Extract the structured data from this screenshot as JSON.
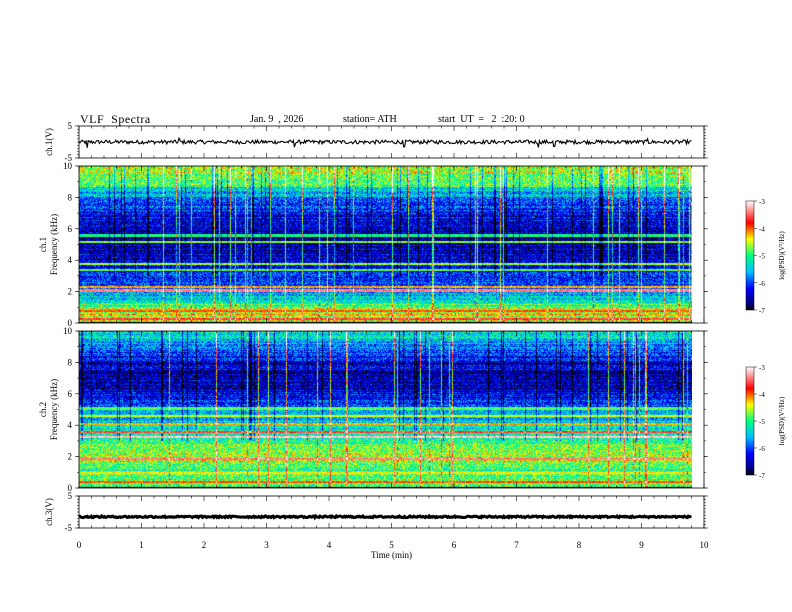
{
  "header": {
    "title": "VLF  Spectra",
    "date": "Jan. 9  , 2026",
    "station": "station= ATH",
    "start_ut": "start  UT  =   2  :20: 0"
  },
  "chart_data": [
    {
      "type": "line",
      "panel": "ch1-waveform",
      "ylabel": "ch.1(V)",
      "ylim": [
        -5,
        5
      ],
      "yticks": [
        "5",
        "-5"
      ],
      "xlim": [
        0,
        10
      ],
      "x_end": 9.8,
      "series": [
        {
          "values_description_free": true,
          "values": [
            0
          ]
        }
      ],
      "baseline": 0,
      "noise_amplitude": 0.6,
      "spikes": [
        [
          0.13,
          -1.8
        ],
        [
          1.6,
          1.2
        ],
        [
          3.45,
          -1.6
        ],
        [
          5.2,
          -1.5
        ],
        [
          7.35,
          -1.7
        ],
        [
          7.6,
          -1.4
        ],
        [
          9.1,
          1.0
        ]
      ]
    },
    {
      "type": "heatmap",
      "panel": "ch1-spectrogram",
      "ylabel": "ch.1",
      "ylabel2": "Frequency  (kHz)",
      "ylim": [
        0,
        10
      ],
      "yticks": [
        "0",
        "2",
        "4",
        "6",
        "8",
        "10"
      ],
      "xlim": [
        0,
        10
      ],
      "x_end": 9.8,
      "colorbar": {
        "label": "log(PSD)(V²/Hz)",
        "ticks": [
          "-3",
          "-4",
          "-5",
          "-6",
          "-7"
        ],
        "range": [
          -7,
          -3
        ]
      },
      "base_levels": [
        [
          0,
          -4.8
        ],
        [
          0.6,
          -4.3
        ],
        [
          1.5,
          -5.3
        ],
        [
          2.5,
          -6.0
        ],
        [
          4.5,
          -6.4
        ],
        [
          6.0,
          -6.6
        ],
        [
          8.0,
          -5.8
        ],
        [
          9.2,
          -4.7
        ],
        [
          10,
          -4.4
        ]
      ],
      "lines": [
        [
          0.3,
          -3.6
        ],
        [
          0.8,
          -4.0
        ],
        [
          2.1,
          -3.4
        ],
        [
          2.3,
          -4.2
        ],
        [
          3.4,
          -4.8
        ],
        [
          3.8,
          -4.6
        ],
        [
          5.2,
          -4.7
        ],
        [
          5.6,
          -5.0
        ]
      ],
      "dropout_bands": [
        [
          0.0,
          0.12
        ]
      ]
    },
    {
      "type": "heatmap",
      "panel": "ch2-spectrogram",
      "ylabel": "ch.2",
      "ylabel2": "Frequency  (kHz)",
      "ylim": [
        0,
        10
      ],
      "yticks": [
        "0",
        "2",
        "4",
        "6",
        "8",
        "10"
      ],
      "xlim": [
        0,
        10
      ],
      "x_end": 9.8,
      "colorbar": {
        "label": "log(PSD)(V²/Hz)",
        "ticks": [
          "-3",
          "-4",
          "-5",
          "-6",
          "-7"
        ],
        "range": [
          -7,
          -3
        ]
      },
      "base_levels": [
        [
          0,
          -4.6
        ],
        [
          1.0,
          -5.0
        ],
        [
          2.0,
          -4.5
        ],
        [
          3.0,
          -5.0
        ],
        [
          4.0,
          -5.3
        ],
        [
          5.0,
          -5.8
        ],
        [
          6.5,
          -6.6
        ],
        [
          8.0,
          -6.4
        ],
        [
          9.2,
          -5.6
        ],
        [
          10,
          -5.2
        ]
      ],
      "lines": [
        [
          0.4,
          -4.0
        ],
        [
          1.0,
          -4.4
        ],
        [
          1.9,
          -3.4
        ],
        [
          3.3,
          -3.2
        ],
        [
          3.6,
          -3.6
        ],
        [
          4.1,
          -4.2
        ],
        [
          4.6,
          -4.5
        ],
        [
          5.1,
          -4.8
        ]
      ],
      "dropout_bands": [
        [
          0.0,
          0.1
        ]
      ]
    },
    {
      "type": "line",
      "panel": "ch3-waveform",
      "ylabel": "ch.3(V)",
      "ylim": [
        -5,
        5
      ],
      "yticks": [
        "5",
        "-5"
      ],
      "xlim": [
        0,
        10
      ],
      "x_end": 9.8,
      "baseline": -1.5,
      "noise_amplitude": 0.25,
      "xlabel": "Time  (min)",
      "xticks": [
        "0",
        "1",
        "2",
        "3",
        "4",
        "5",
        "6",
        "7",
        "8",
        "9",
        "10"
      ]
    }
  ]
}
